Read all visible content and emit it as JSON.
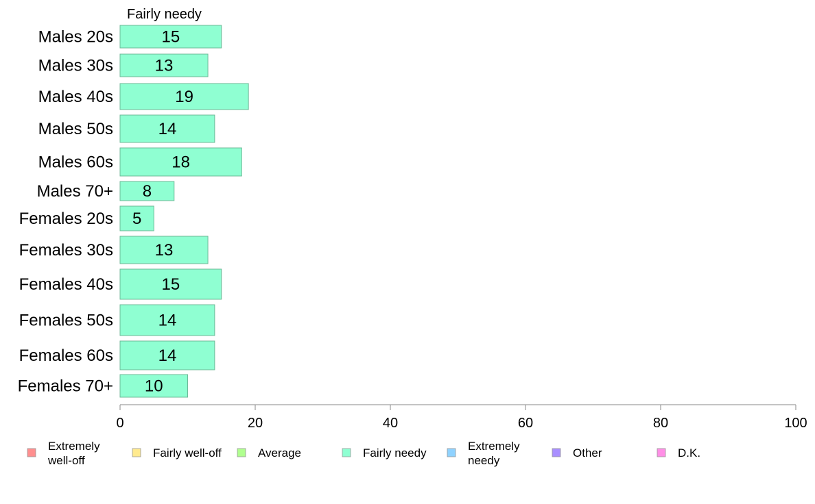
{
  "chart_data": {
    "type": "bar",
    "orientation": "horizontal",
    "title": "Fairly needy",
    "categories": [
      "Males 20s",
      "Males 30s",
      "Males 40s",
      "Males 50s",
      "Males 60s",
      "Males 70+",
      "Females 20s",
      "Females 30s",
      "Females 40s",
      "Females 50s",
      "Females 60s",
      "Females 70+"
    ],
    "values": [
      15,
      13,
      19,
      14,
      18,
      8,
      5,
      13,
      15,
      14,
      14,
      10
    ],
    "xlim": [
      0,
      100
    ],
    "xticks": [
      0,
      20,
      40,
      60,
      80,
      100
    ],
    "bar_color": "#8fffd2",
    "bar_stroke": "#6db897",
    "grid": false,
    "legend_position": "bottom",
    "legend": [
      {
        "label": [
          "Extremely",
          "well-off"
        ],
        "color": "#ff8f8f"
      },
      {
        "label": [
          "Fairly well-off"
        ],
        "color": "#ffea8f"
      },
      {
        "label": [
          "Average"
        ],
        "color": "#b0ff8f"
      },
      {
        "label": [
          "Fairly needy"
        ],
        "color": "#8fffd2"
      },
      {
        "label": [
          "Extremely",
          "needy"
        ],
        "color": "#8fd2ff"
      },
      {
        "label": [
          "Other"
        ],
        "color": "#a98fff"
      },
      {
        "label": [
          "D.K."
        ],
        "color": "#ff8fe6"
      }
    ]
  }
}
